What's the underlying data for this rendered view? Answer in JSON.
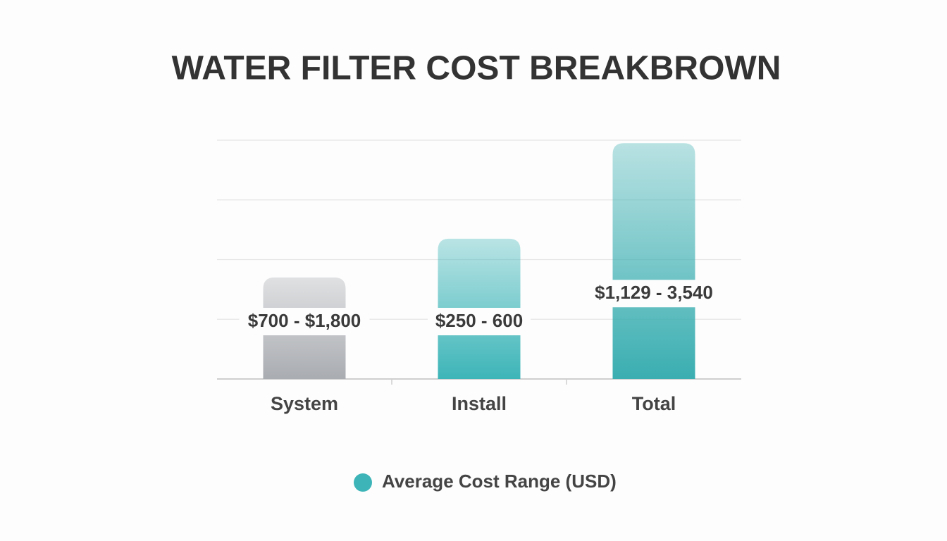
{
  "chart_data": {
    "type": "bar",
    "title": "WATER FILTER COST BREAKBROWN",
    "categories": [
      "System",
      "Install",
      "Total"
    ],
    "series": [
      {
        "name": "Average Cost Range (USD)",
        "color": "#3db5b8",
        "values": [
          1.7,
          2.35,
          3.95
        ]
      }
    ],
    "bar_colors": [
      "#a9acb1",
      "#3db5b8",
      "#3aaeb1"
    ],
    "annotations": [
      "$700 - $1,800",
      "$250 - 600",
      "$1,129 - 3,540"
    ],
    "ylim": [
      0,
      4
    ],
    "yticks": [
      0,
      1,
      2,
      3,
      4
    ],
    "grid": true
  }
}
